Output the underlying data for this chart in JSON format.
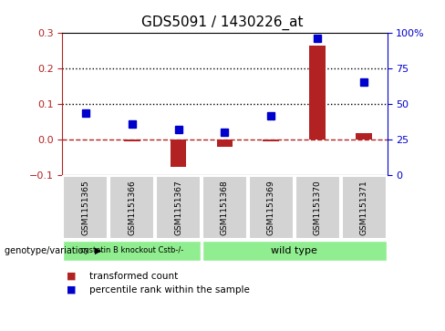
{
  "title": "GDS5091 / 1430226_at",
  "samples": [
    "GSM1151365",
    "GSM1151366",
    "GSM1151367",
    "GSM1151368",
    "GSM1151369",
    "GSM1151370",
    "GSM1151371"
  ],
  "transformed_count": [
    0.002,
    -0.005,
    -0.075,
    -0.02,
    -0.003,
    0.265,
    0.02
  ],
  "percentile_rank": [
    0.075,
    0.045,
    0.028,
    0.022,
    0.068,
    0.285,
    0.163
  ],
  "ylim": [
    -0.1,
    0.3
  ],
  "yticks_left": [
    -0.1,
    0.0,
    0.1,
    0.2,
    0.3
  ],
  "yticks_right_vals": [
    0,
    25,
    50,
    75,
    100
  ],
  "yticks_right_labels": [
    "0",
    "25",
    "50",
    "75",
    "100%"
  ],
  "yticks_right_coords": [
    -0.1,
    0.0,
    0.1,
    0.2,
    0.3
  ],
  "dotted_lines": [
    0.1,
    0.2
  ],
  "bar_color": "#B22222",
  "dot_color": "#0000CD",
  "grid_bg": "#D3D3D3",
  "group_color": "#90EE90",
  "group1_label": "cystatin B knockout Cstb-/-",
  "group1_n": 3,
  "group2_label": "wild type",
  "group2_n": 4,
  "genotype_label": "genotype/variation",
  "legend_red": "transformed count",
  "legend_blue": "percentile rank within the sample",
  "bar_width": 0.35,
  "marker_size": 6
}
